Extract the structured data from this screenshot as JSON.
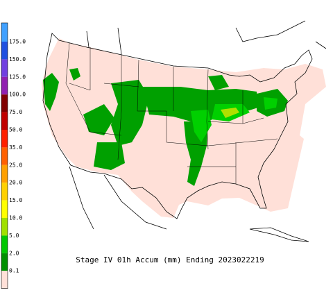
{
  "legend": {
    "labels": [
      "175.0",
      "150.0",
      "125.0",
      "100.0",
      "75.0",
      "50.0",
      "35.0",
      "25.0",
      "20.0",
      "15.0",
      "10.0",
      "5.0",
      "2.0",
      "0.1"
    ],
    "colors": [
      "#40a0ff",
      "#2050e0",
      "#7040e0",
      "#9020b0",
      "#800000",
      "#c00000",
      "#ff2000",
      "#ff6000",
      "#ffa000",
      "#ffd000",
      "#ffff00",
      "#a0e000",
      "#00c800",
      "#009000",
      "#ffe0d8"
    ]
  },
  "title": "Stage IV 01h Accum (mm) Ending 2023022219"
}
